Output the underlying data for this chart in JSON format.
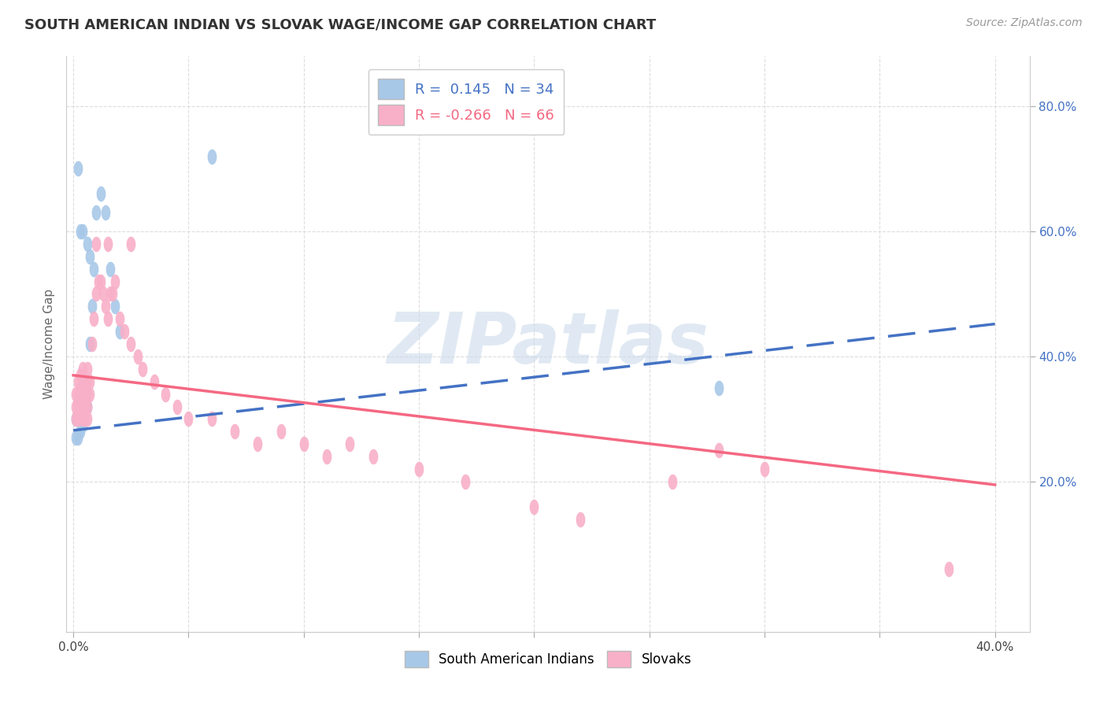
{
  "title": "SOUTH AMERICAN INDIAN VS SLOVAK WAGE/INCOME GAP CORRELATION CHART",
  "source": "Source: ZipAtlas.com",
  "ylabel": "Wage/Income Gap",
  "xlim": [
    -0.003,
    0.415
  ],
  "ylim": [
    -0.04,
    0.88
  ],
  "x_ticks": [
    0.0,
    0.05,
    0.1,
    0.15,
    0.2,
    0.25,
    0.3,
    0.35,
    0.4
  ],
  "x_tick_labels": [
    "0.0%",
    "",
    "",
    "",
    "",
    "",
    "",
    "",
    "40.0%"
  ],
  "y_ticks_right": [
    0.2,
    0.4,
    0.6,
    0.8
  ],
  "y_tick_labels_right": [
    "20.0%",
    "40.0%",
    "60.0%",
    "80.0%"
  ],
  "R_blue": "0.145",
  "N_blue": "34",
  "R_pink": "-0.266",
  "N_pink": "66",
  "blue_scatter_color": "#a8c8e8",
  "pink_scatter_color": "#f8b0c8",
  "blue_line_color": "#4472c4",
  "pink_line_color": "#f46882",
  "legend_label_blue": "South American Indians",
  "legend_label_pink": "Slovaks",
  "watermark_text": "ZIPatlas",
  "blue_line_x": [
    0.0,
    0.4
  ],
  "blue_line_y": [
    0.282,
    0.452
  ],
  "pink_line_x": [
    0.0,
    0.4
  ],
  "pink_line_y": [
    0.37,
    0.195
  ],
  "blue_x": [
    0.001,
    0.001,
    0.002,
    0.002,
    0.002,
    0.003,
    0.003,
    0.003,
    0.003,
    0.004,
    0.004,
    0.004,
    0.005,
    0.005,
    0.005,
    0.005,
    0.006,
    0.006,
    0.007,
    0.008,
    0.009,
    0.01,
    0.012,
    0.014,
    0.016,
    0.018,
    0.02,
    0.06,
    0.28,
    0.002,
    0.003,
    0.004,
    0.006,
    0.007
  ],
  "blue_y": [
    0.27,
    0.3,
    0.27,
    0.3,
    0.33,
    0.28,
    0.3,
    0.32,
    0.34,
    0.29,
    0.31,
    0.33,
    0.3,
    0.32,
    0.34,
    0.36,
    0.32,
    0.34,
    0.42,
    0.48,
    0.54,
    0.63,
    0.66,
    0.63,
    0.54,
    0.48,
    0.44,
    0.72,
    0.35,
    0.7,
    0.6,
    0.6,
    0.58,
    0.56
  ],
  "pink_x": [
    0.001,
    0.001,
    0.001,
    0.002,
    0.002,
    0.002,
    0.002,
    0.003,
    0.003,
    0.003,
    0.003,
    0.004,
    0.004,
    0.004,
    0.004,
    0.004,
    0.005,
    0.005,
    0.005,
    0.005,
    0.006,
    0.006,
    0.006,
    0.006,
    0.006,
    0.007,
    0.007,
    0.008,
    0.009,
    0.01,
    0.011,
    0.012,
    0.013,
    0.014,
    0.015,
    0.016,
    0.017,
    0.018,
    0.02,
    0.022,
    0.025,
    0.028,
    0.03,
    0.035,
    0.04,
    0.045,
    0.05,
    0.06,
    0.07,
    0.08,
    0.09,
    0.1,
    0.11,
    0.12,
    0.13,
    0.15,
    0.17,
    0.2,
    0.22,
    0.26,
    0.28,
    0.3,
    0.38,
    0.01,
    0.015,
    0.025
  ],
  "pink_y": [
    0.3,
    0.32,
    0.34,
    0.3,
    0.32,
    0.34,
    0.36,
    0.31,
    0.33,
    0.35,
    0.37,
    0.3,
    0.32,
    0.34,
    0.36,
    0.38,
    0.3,
    0.32,
    0.34,
    0.36,
    0.3,
    0.32,
    0.34,
    0.36,
    0.38,
    0.34,
    0.36,
    0.42,
    0.46,
    0.5,
    0.52,
    0.52,
    0.5,
    0.48,
    0.46,
    0.5,
    0.5,
    0.52,
    0.46,
    0.44,
    0.42,
    0.4,
    0.38,
    0.36,
    0.34,
    0.32,
    0.3,
    0.3,
    0.28,
    0.26,
    0.28,
    0.26,
    0.24,
    0.26,
    0.24,
    0.22,
    0.2,
    0.16,
    0.14,
    0.2,
    0.25,
    0.22,
    0.06,
    0.58,
    0.58,
    0.58
  ]
}
